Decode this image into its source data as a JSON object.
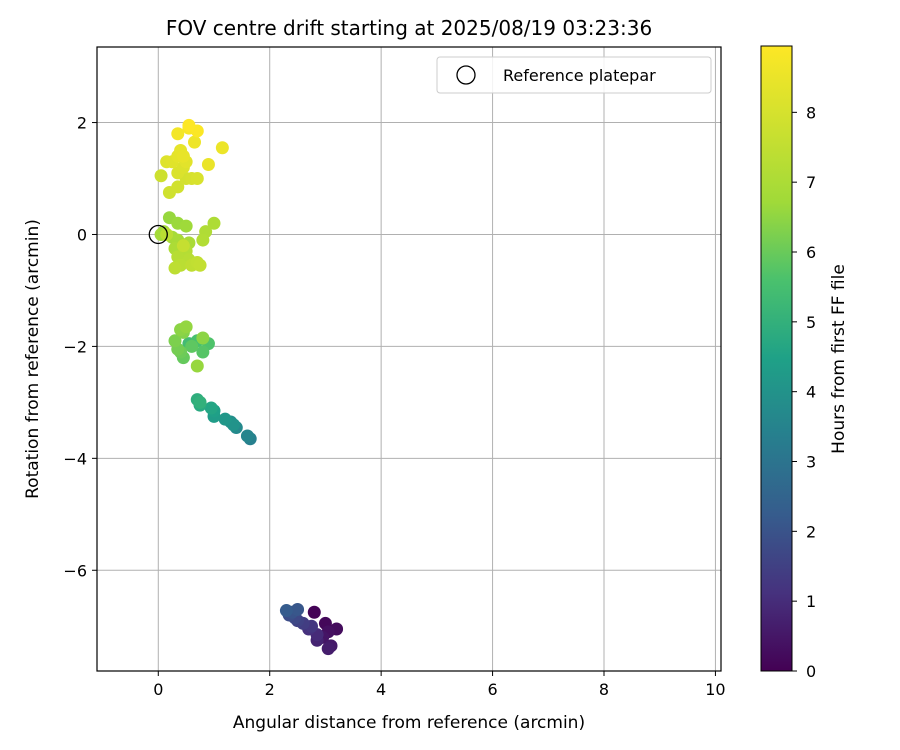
{
  "chart_data": {
    "type": "scatter",
    "title": "FOV centre drift starting at 2025/08/19 03:23:36",
    "xlabel": "Angular distance from reference (arcmin)",
    "ylabel": "Rotation from reference (arcmin)",
    "xlim": [
      -1.1,
      10.1
    ],
    "ylim": [
      -7.8,
      3.35
    ],
    "xticks": [
      0,
      2,
      4,
      6,
      8,
      10
    ],
    "yticks": [
      -6,
      -4,
      -2,
      0,
      2
    ],
    "grid": true,
    "legend": {
      "position": "top-right",
      "label": "Reference platepar"
    },
    "reference_point": {
      "x": 0,
      "y": 0
    },
    "colorbar": {
      "label": "Hours from first FF file",
      "colormap": "viridis",
      "range": [
        0,
        8.95
      ],
      "ticks": [
        0,
        1,
        2,
        3,
        4,
        5,
        6,
        7,
        8
      ]
    },
    "points": [
      {
        "x": 2.8,
        "y": -6.75,
        "t": 0.05
      },
      {
        "x": 3.0,
        "y": -6.95,
        "t": 0.15
      },
      {
        "x": 3.2,
        "y": -7.05,
        "t": 0.25
      },
      {
        "x": 3.05,
        "y": -7.1,
        "t": 0.35
      },
      {
        "x": 2.95,
        "y": -7.2,
        "t": 0.45
      },
      {
        "x": 3.1,
        "y": -7.35,
        "t": 0.55
      },
      {
        "x": 3.05,
        "y": -7.4,
        "t": 0.65
      },
      {
        "x": 2.85,
        "y": -7.25,
        "t": 0.8
      },
      {
        "x": 2.85,
        "y": -7.15,
        "t": 0.95
      },
      {
        "x": 2.7,
        "y": -7.05,
        "t": 1.1
      },
      {
        "x": 2.75,
        "y": -7.0,
        "t": 1.25
      },
      {
        "x": 2.6,
        "y": -6.95,
        "t": 1.4
      },
      {
        "x": 2.5,
        "y": -6.9,
        "t": 1.55
      },
      {
        "x": 2.45,
        "y": -6.85,
        "t": 1.7
      },
      {
        "x": 2.35,
        "y": -6.8,
        "t": 1.85
      },
      {
        "x": 2.4,
        "y": -6.75,
        "t": 2.0
      },
      {
        "x": 2.5,
        "y": -6.7,
        "t": 2.1
      },
      {
        "x": 2.3,
        "y": -6.72,
        "t": 2.25
      },
      {
        "x": 1.65,
        "y": -3.65,
        "t": 3.4
      },
      {
        "x": 1.6,
        "y": -3.6,
        "t": 3.55
      },
      {
        "x": 1.4,
        "y": -3.45,
        "t": 3.7
      },
      {
        "x": 1.3,
        "y": -3.35,
        "t": 3.85
      },
      {
        "x": 1.35,
        "y": -3.4,
        "t": 4.0
      },
      {
        "x": 1.2,
        "y": -3.3,
        "t": 4.15
      },
      {
        "x": 1.0,
        "y": -3.25,
        "t": 4.3
      },
      {
        "x": 1.0,
        "y": -3.15,
        "t": 4.45
      },
      {
        "x": 0.95,
        "y": -3.1,
        "t": 4.6
      },
      {
        "x": 0.75,
        "y": -3.05,
        "t": 4.75
      },
      {
        "x": 0.7,
        "y": -2.95,
        "t": 4.9
      },
      {
        "x": 0.75,
        "y": -3.0,
        "t": 5.0
      },
      {
        "x": 0.55,
        "y": -1.95,
        "t": 5.4
      },
      {
        "x": 0.7,
        "y": -1.9,
        "t": 5.55
      },
      {
        "x": 0.9,
        "y": -1.95,
        "t": 5.65
      },
      {
        "x": 0.8,
        "y": -2.1,
        "t": 5.75
      },
      {
        "x": 0.6,
        "y": -2.0,
        "t": 5.85
      },
      {
        "x": 0.45,
        "y": -2.2,
        "t": 5.95
      },
      {
        "x": 0.4,
        "y": -2.1,
        "t": 6.05
      },
      {
        "x": 0.35,
        "y": -2.05,
        "t": 6.15
      },
      {
        "x": 0.3,
        "y": -1.9,
        "t": 6.25
      },
      {
        "x": 0.45,
        "y": -1.75,
        "t": 6.35
      },
      {
        "x": 0.4,
        "y": -1.7,
        "t": 6.45
      },
      {
        "x": 0.5,
        "y": -1.65,
        "t": 6.55
      },
      {
        "x": 0.8,
        "y": -1.85,
        "t": 6.45
      },
      {
        "x": 0.7,
        "y": -2.35,
        "t": 6.6
      },
      {
        "x": 0.2,
        "y": 0.3,
        "t": 6.6
      },
      {
        "x": 0.35,
        "y": 0.2,
        "t": 6.65
      },
      {
        "x": 0.5,
        "y": 0.15,
        "t": 6.7
      },
      {
        "x": 0.1,
        "y": 0.05,
        "t": 6.75
      },
      {
        "x": 0.05,
        "y": 0.0,
        "t": 6.8
      },
      {
        "x": 0.25,
        "y": -0.05,
        "t": 6.85
      },
      {
        "x": 0.35,
        "y": -0.1,
        "t": 6.9
      },
      {
        "x": 0.55,
        "y": -0.15,
        "t": 6.95
      },
      {
        "x": 0.3,
        "y": -0.25,
        "t": 7.0
      },
      {
        "x": 1.0,
        "y": 0.2,
        "t": 7.05
      },
      {
        "x": 0.85,
        "y": 0.05,
        "t": 7.1
      },
      {
        "x": 0.8,
        "y": -0.1,
        "t": 7.15
      },
      {
        "x": 0.5,
        "y": -0.3,
        "t": 7.2
      },
      {
        "x": 0.35,
        "y": -0.4,
        "t": 7.25
      },
      {
        "x": 0.55,
        "y": -0.45,
        "t": 7.3
      },
      {
        "x": 0.4,
        "y": -0.55,
        "t": 7.35
      },
      {
        "x": 0.3,
        "y": -0.6,
        "t": 7.4
      },
      {
        "x": 0.6,
        "y": -0.55,
        "t": 7.45
      },
      {
        "x": 0.7,
        "y": -0.5,
        "t": 7.5
      },
      {
        "x": 0.75,
        "y": -0.55,
        "t": 7.55
      },
      {
        "x": 0.45,
        "y": -0.2,
        "t": 7.6
      },
      {
        "x": 0.15,
        "y": 0.0,
        "t": 7.35
      },
      {
        "x": 0.05,
        "y": 1.05,
        "t": 7.8
      },
      {
        "x": 0.2,
        "y": 0.75,
        "t": 7.85
      },
      {
        "x": 0.35,
        "y": 0.85,
        "t": 7.9
      },
      {
        "x": 0.5,
        "y": 1.0,
        "t": 7.95
      },
      {
        "x": 0.6,
        "y": 1.0,
        "t": 8.0
      },
      {
        "x": 0.7,
        "y": 1.0,
        "t": 8.05
      },
      {
        "x": 0.35,
        "y": 1.1,
        "t": 8.1
      },
      {
        "x": 0.45,
        "y": 1.2,
        "t": 8.15
      },
      {
        "x": 0.15,
        "y": 1.3,
        "t": 8.2
      },
      {
        "x": 0.25,
        "y": 1.3,
        "t": 8.25
      },
      {
        "x": 0.5,
        "y": 1.3,
        "t": 8.3
      },
      {
        "x": 0.35,
        "y": 1.4,
        "t": 8.35
      },
      {
        "x": 0.4,
        "y": 1.5,
        "t": 8.4
      },
      {
        "x": 0.45,
        "y": 1.4,
        "t": 8.45
      },
      {
        "x": 0.9,
        "y": 1.25,
        "t": 8.5
      },
      {
        "x": 1.15,
        "y": 1.55,
        "t": 8.55
      },
      {
        "x": 0.65,
        "y": 1.65,
        "t": 8.6
      },
      {
        "x": 0.35,
        "y": 1.8,
        "t": 8.7
      },
      {
        "x": 0.55,
        "y": 1.9,
        "t": 8.8
      },
      {
        "x": 0.7,
        "y": 1.85,
        "t": 8.9
      },
      {
        "x": 0.55,
        "y": 1.95,
        "t": 8.95
      }
    ]
  }
}
